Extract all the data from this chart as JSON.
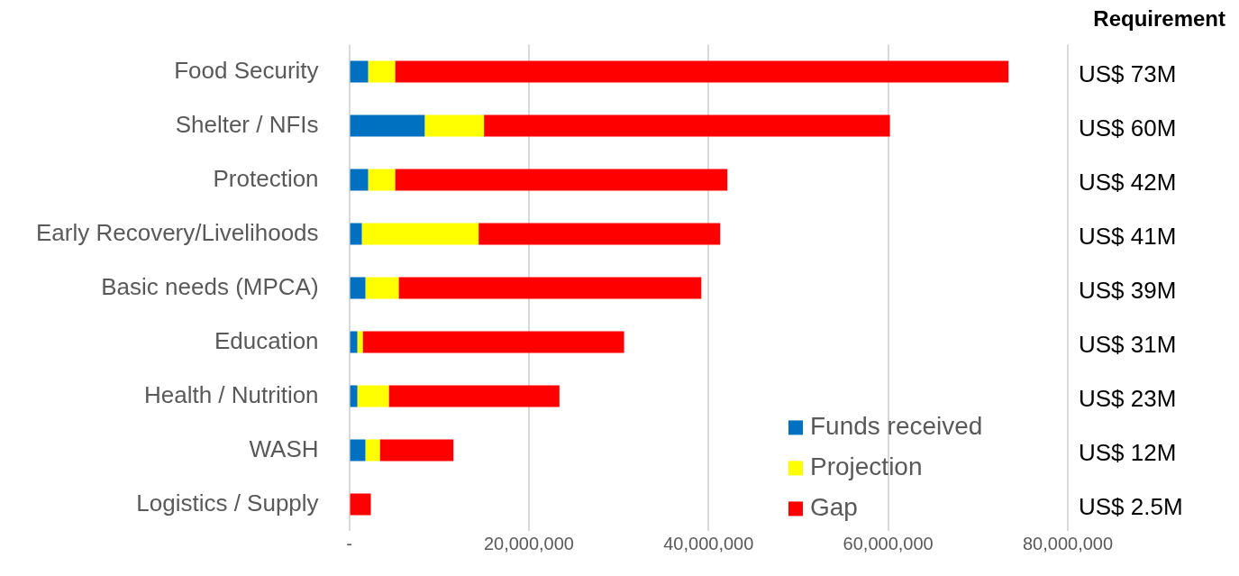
{
  "chart_data": {
    "type": "bar",
    "orientation": "horizontal",
    "stacked": true,
    "categories": [
      "Food Security",
      "Shelter / NFIs",
      "Protection",
      "Early Recovery/Livelihoods",
      "Basic needs (MPCA)",
      "Education",
      "Health / Nutrition",
      "WASH",
      "Logistics / Supply"
    ],
    "series": [
      {
        "name": "Funds received",
        "color": "#0070c0",
        "values": [
          2100000,
          8400000,
          2100000,
          1400000,
          1800000,
          900000,
          900000,
          1800000,
          0
        ]
      },
      {
        "name": "Projection",
        "color": "#ffff00",
        "values": [
          3000000,
          6600000,
          3000000,
          13000000,
          3700000,
          600000,
          3500000,
          1600000,
          0
        ]
      },
      {
        "name": "Gap",
        "color": "#ff0000",
        "values": [
          68300000,
          45200000,
          37000000,
          26900000,
          33700000,
          29100000,
          19000000,
          8200000,
          2400000
        ]
      }
    ],
    "xlim": [
      0,
      80000000
    ],
    "xticks": [
      {
        "value": 0,
        "label": "-"
      },
      {
        "value": 20000000,
        "label": "20,000,000"
      },
      {
        "value": 40000000,
        "label": "40,000,000"
      },
      {
        "value": 60000000,
        "label": "60,000,000"
      },
      {
        "value": 80000000,
        "label": "80,000,000"
      }
    ],
    "annotations": [
      "Requirement",
      "US$ 73M",
      "US$ 60M",
      "US$ 42M",
      "US$ 41M",
      "US$ 39M",
      "US$ 31M",
      "US$ 23M",
      "US$ 12M",
      "US$ 2.5M"
    ],
    "grid": "x",
    "legend": "bottom right"
  }
}
